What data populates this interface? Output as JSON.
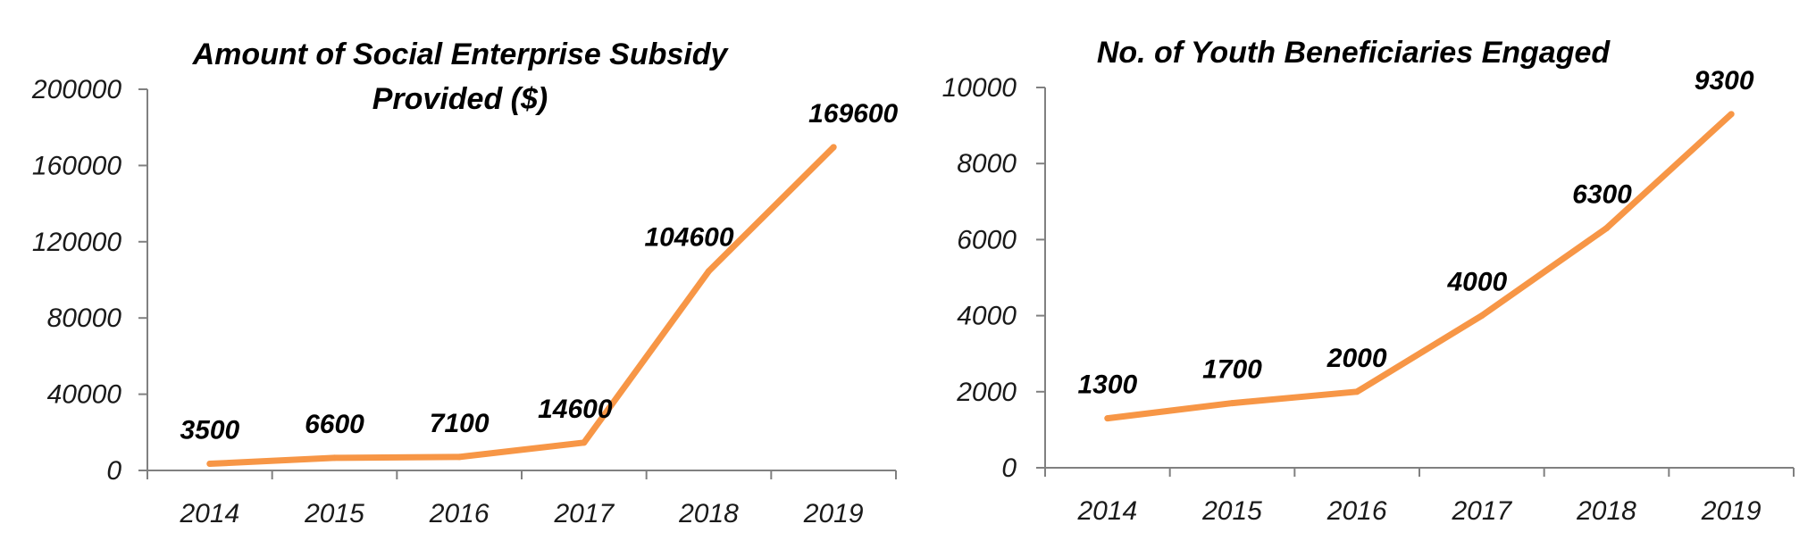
{
  "chart_data": [
    {
      "type": "line",
      "title": "Amount of Social Enterprise Subsidy Provided ($)",
      "title_lines": [
        "Amount of Social Enterprise Subsidy",
        "Provided ($)"
      ],
      "categories": [
        "2014",
        "2015",
        "2016",
        "2017",
        "2018",
        "2019"
      ],
      "series": [
        {
          "values": [
            3500,
            6600,
            7100,
            14600,
            104600,
            169600
          ],
          "color": "#F79646"
        }
      ],
      "data_labels": [
        "3500",
        "6600",
        "7100",
        "14600",
        "104600",
        "169600"
      ],
      "ylim": [
        0,
        200000
      ],
      "yticks": [
        "0",
        "40000",
        "80000",
        "120000",
        "160000",
        "200000"
      ],
      "xlabel": "",
      "ylabel": "",
      "grid": false,
      "legend": "none"
    },
    {
      "type": "line",
      "title": "No. of Youth Beneficiaries Engaged",
      "title_lines": [
        "No. of Youth Beneficiaries Engaged"
      ],
      "categories": [
        "2014",
        "2015",
        "2016",
        "2017",
        "2018",
        "2019"
      ],
      "series": [
        {
          "values": [
            1300,
            1700,
            2000,
            4000,
            6300,
            9300
          ],
          "color": "#F79646"
        }
      ],
      "data_labels": [
        "1300",
        "1700",
        "2000",
        "4000",
        "6300",
        "9300"
      ],
      "ylim": [
        0,
        10000
      ],
      "yticks": [
        "0",
        "2000",
        "4000",
        "6000",
        "8000",
        "10000"
      ],
      "xlabel": "",
      "ylabel": "",
      "grid": false,
      "legend": "none"
    }
  ]
}
